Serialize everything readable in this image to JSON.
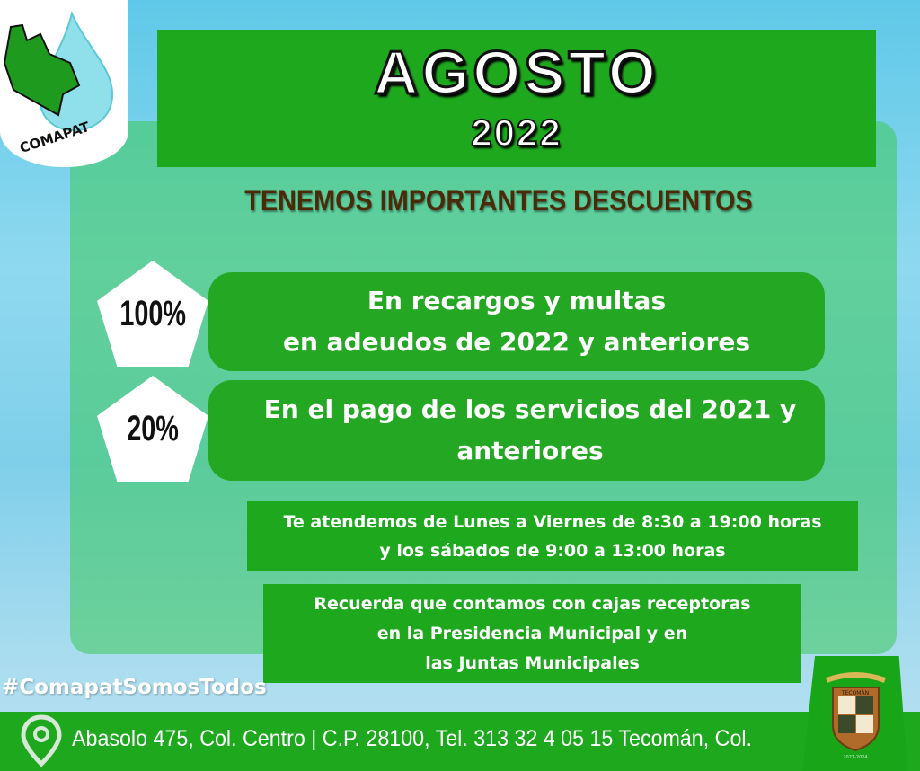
{
  "logo": {
    "text": "COMAPAT"
  },
  "header": {
    "month": "AGOSTO",
    "year": "2022"
  },
  "heading": "TENEMOS IMPORTANTES DESCUENTOS",
  "discounts": [
    {
      "percent": "100%",
      "line1": "En recargos y multas",
      "line2": "en adeudos de 2022 y anteriores"
    },
    {
      "percent": "20%",
      "line1": "En el pago de los servicios del 2021 y",
      "line2": "anteriores"
    }
  ],
  "hours": {
    "line1": "Te atendemos de Lunes a Viernes de 8:30 a 19:00 horas",
    "line2": "y los  sábados de 9:00 a 13:00 horas"
  },
  "reminder": {
    "line1": "Recuerda que contamos con cajas receptoras",
    "line2": "en la Presidencia Municipal y en",
    "line3": "las Juntas Municipales"
  },
  "hashtag": "#ComapatSomosTodos",
  "footer": {
    "address": "Abasolo 475, Col. Centro | C.P. 28100, Tel. 313 32 4 05 15 Tecomán, Col.",
    "icon": "location-pin-icon"
  },
  "seal": {
    "text": "TECOMÁN",
    "years": "2021-2024"
  },
  "colors": {
    "green": "#1ea81e",
    "sky": "#5fc8e8",
    "heading": "#4a2a08"
  }
}
